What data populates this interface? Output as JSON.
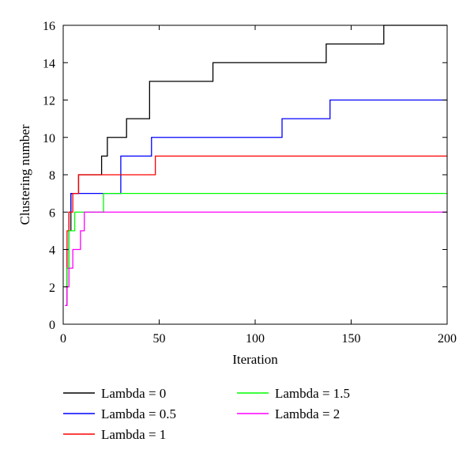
{
  "chart_data": {
    "type": "line",
    "title": "",
    "xlabel": "Iteration",
    "ylabel": "Clustering number",
    "xlim": [
      0,
      200
    ],
    "ylim": [
      0,
      16
    ],
    "xticks": [
      0,
      50,
      100,
      150,
      200
    ],
    "yticks": [
      0,
      2,
      4,
      6,
      8,
      10,
      12,
      14,
      16
    ],
    "grid": false,
    "legend_position": "bottom",
    "step": true,
    "series": [
      {
        "name": "Lambda = 0",
        "color": "#000000",
        "x": [
          1,
          2,
          3,
          4,
          8,
          18,
          20,
          23,
          33,
          45,
          78,
          137,
          167,
          200
        ],
        "y": [
          1,
          3,
          5,
          7,
          8,
          8,
          9,
          10,
          11,
          13,
          14,
          15,
          16,
          16
        ]
      },
      {
        "name": "Lambda = 0.5",
        "color": "#0000ff",
        "x": [
          1,
          2,
          3,
          4,
          28,
          30,
          44,
          46,
          114,
          139,
          200
        ],
        "y": [
          2,
          4,
          6,
          7,
          7,
          9,
          9,
          10,
          11,
          12,
          12
        ]
      },
      {
        "name": "Lambda = 1",
        "color": "#ff0000",
        "x": [
          1,
          2,
          3,
          5,
          8,
          46,
          48,
          200
        ],
        "y": [
          2,
          5,
          6,
          7,
          8,
          8,
          9,
          9
        ]
      },
      {
        "name": "Lambda = 1.5",
        "color": "#00ff00",
        "x": [
          1,
          2,
          3,
          5,
          6,
          20,
          21,
          200
        ],
        "y": [
          2,
          3,
          5,
          5,
          6,
          6,
          7,
          7
        ]
      },
      {
        "name": "Lambda = 2",
        "color": "#ff00ff",
        "x": [
          1,
          2,
          3,
          5,
          7,
          9,
          11,
          200
        ],
        "y": [
          1,
          2,
          3,
          4,
          4,
          5,
          6,
          6
        ]
      }
    ]
  }
}
